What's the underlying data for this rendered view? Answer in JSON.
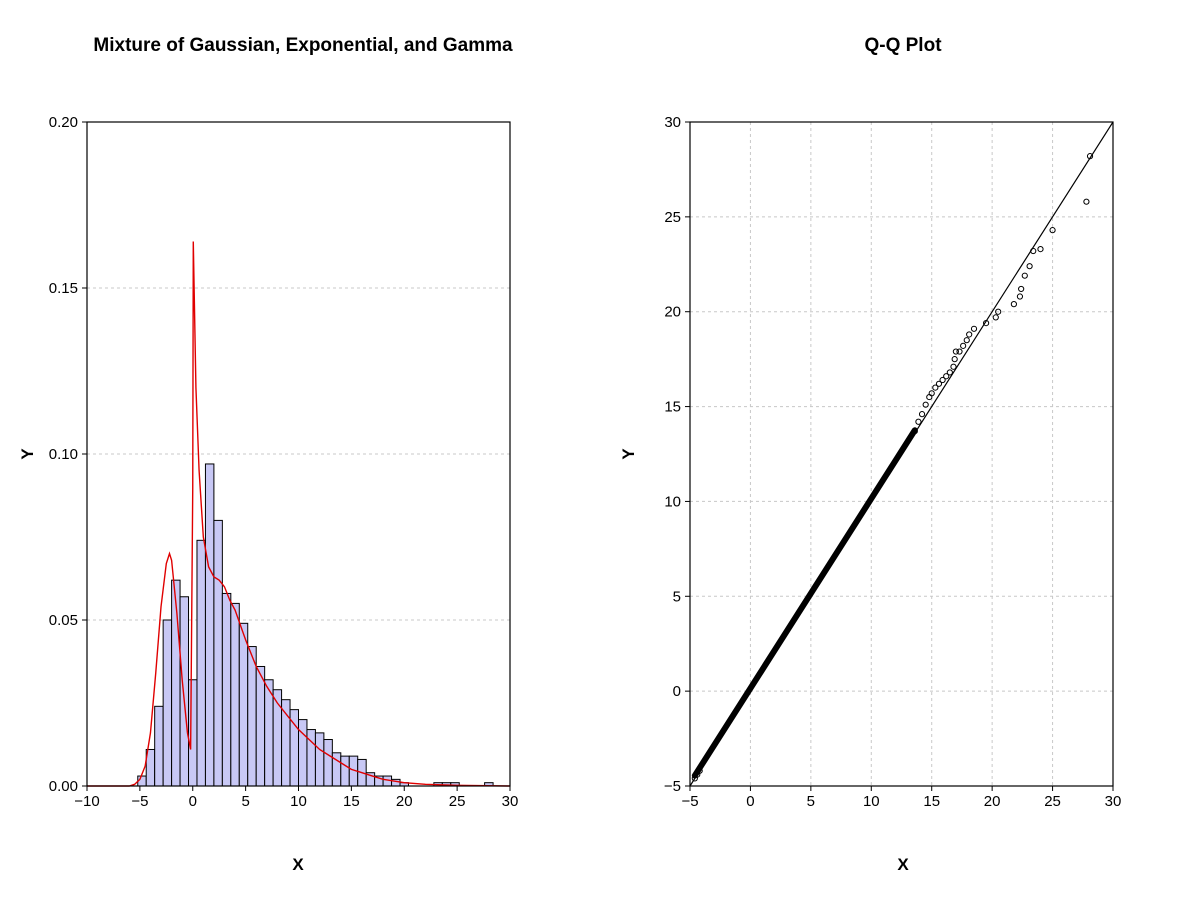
{
  "chart_data": [
    {
      "type": "bar",
      "title": "Mixture of Gaussian, Exponential, and Gamma",
      "xlabel": "X",
      "ylabel": "Y",
      "xlim": [
        -10,
        30
      ],
      "ylim": [
        0,
        0.2
      ],
      "xticks": [
        "−10",
        "−5",
        "0",
        "5",
        "10",
        "15",
        "20",
        "25",
        "30"
      ],
      "xtick_values": [
        -10,
        -5,
        0,
        5,
        10,
        15,
        20,
        25,
        30
      ],
      "yticks": [
        "0.00",
        "0.05",
        "0.10",
        "0.15",
        "0.20"
      ],
      "ytick_values": [
        0,
        0.05,
        0.1,
        0.15,
        0.2
      ],
      "grid": "y-dotted",
      "bar_fill": "#c8c8f5",
      "bar_stroke": "#000000",
      "curve_color": "#e00000",
      "bin_width": 0.8,
      "bins_start": [
        -5.2,
        -4.4,
        -3.6,
        -2.8,
        -2.0,
        -1.2,
        -0.4,
        0.4,
        1.2,
        2.0,
        2.8,
        3.6,
        4.4,
        5.2,
        6.0,
        6.8,
        7.6,
        8.4,
        9.2,
        10.0,
        10.8,
        11.6,
        12.4,
        13.2,
        14.0,
        14.8,
        15.6,
        16.4,
        17.2,
        18.0,
        18.8,
        19.6,
        22.8,
        23.6,
        24.4,
        27.6
      ],
      "bin_values": [
        0.003,
        0.011,
        0.024,
        0.05,
        0.062,
        0.057,
        0.032,
        0.074,
        0.097,
        0.08,
        0.058,
        0.055,
        0.049,
        0.042,
        0.036,
        0.032,
        0.029,
        0.026,
        0.023,
        0.02,
        0.017,
        0.016,
        0.014,
        0.01,
        0.009,
        0.009,
        0.008,
        0.004,
        0.003,
        0.003,
        0.002,
        0.001,
        0.001,
        0.001,
        0.001,
        0.001
      ],
      "series": [
        {
          "name": "",
          "type": "line",
          "x": [
            -10,
            -6,
            -5.5,
            -5,
            -4.5,
            -4,
            -3.5,
            -3,
            -2.5,
            -2.2,
            -2,
            -1.5,
            -1,
            -0.5,
            -0.2,
            0,
            0.05,
            0.3,
            0.6,
            1,
            1.5,
            2,
            2.5,
            3,
            3.5,
            4,
            5,
            6,
            7,
            8,
            9,
            10,
            11,
            12,
            13,
            14,
            15,
            16,
            17,
            18,
            20,
            22,
            25,
            30
          ],
          "y": [
            0,
            0,
            0.0005,
            0.002,
            0.006,
            0.016,
            0.034,
            0.054,
            0.067,
            0.07,
            0.068,
            0.052,
            0.032,
            0.016,
            0.011,
            0.09,
            0.164,
            0.12,
            0.095,
            0.075,
            0.066,
            0.063,
            0.062,
            0.06,
            0.056,
            0.053,
            0.044,
            0.036,
            0.03,
            0.025,
            0.021,
            0.017,
            0.014,
            0.011,
            0.009,
            0.007,
            0.005,
            0.004,
            0.003,
            0.002,
            0.001,
            0.0005,
            0.0002,
            0
          ]
        }
      ]
    },
    {
      "type": "scatter",
      "title": "Q-Q Plot",
      "xlabel": "X",
      "ylabel": "Y",
      "xlim": [
        -5,
        30
      ],
      "ylim": [
        -5,
        30
      ],
      "xticks": [
        "−5",
        "0",
        "5",
        "10",
        "15",
        "20",
        "25",
        "30"
      ],
      "xtick_values": [
        -5,
        0,
        5,
        10,
        15,
        20,
        25,
        30
      ],
      "yticks": [
        "−5",
        "0",
        "5",
        "10",
        "15",
        "20",
        "25",
        "30"
      ],
      "ytick_values": [
        -5,
        0,
        5,
        10,
        15,
        20,
        25,
        30
      ],
      "grid": "dotted",
      "reference_line": {
        "x": [
          -5,
          30
        ],
        "y": [
          -5,
          30
        ]
      },
      "dense_band": {
        "x_from": -4.6,
        "x_to": 13.6,
        "offset_y": 0.15
      },
      "series": [
        {
          "name": "",
          "x": [
            -4.6,
            -4.4,
            -4.2,
            13.6,
            13.9,
            14.2,
            14.5,
            14.8,
            15.0,
            15.3,
            15.6,
            15.9,
            16.2,
            16.5,
            16.8,
            16.9,
            17.0,
            17.3,
            17.6,
            17.9,
            18.1,
            18.5,
            19.5,
            20.3,
            20.5,
            21.8,
            22.3,
            22.4,
            22.7,
            23.1,
            23.4,
            24.0,
            25.0,
            27.8,
            28.1
          ],
          "y": [
            -4.6,
            -4.4,
            -4.2,
            13.7,
            14.2,
            14.6,
            15.1,
            15.5,
            15.7,
            16.0,
            16.2,
            16.4,
            16.6,
            16.8,
            17.1,
            17.5,
            17.9,
            17.9,
            18.2,
            18.5,
            18.8,
            19.1,
            19.4,
            19.7,
            20.0,
            20.4,
            20.8,
            21.2,
            21.9,
            22.4,
            23.2,
            23.3,
            24.3,
            25.8,
            28.2
          ]
        }
      ]
    }
  ]
}
